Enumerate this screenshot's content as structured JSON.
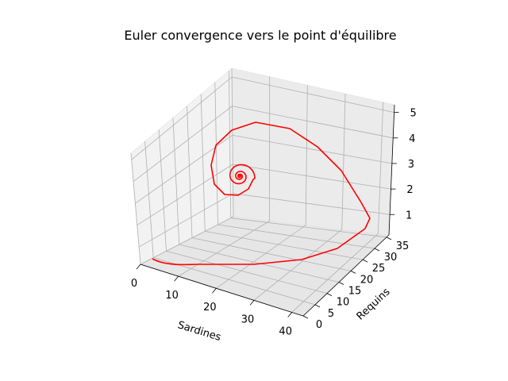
{
  "chart_data": {
    "type": "line3d",
    "title": "Euler convergence vers le point d'équilibre",
    "xlabel": "Sardines",
    "ylabel": "Requins",
    "zlabel": "",
    "xticks": [
      "0",
      "10",
      "20",
      "30",
      "40"
    ],
    "yticks": [
      "0",
      "5",
      "10",
      "15",
      "20",
      "25",
      "30",
      "35"
    ],
    "zticks": [
      "1",
      "2",
      "3",
      "4",
      "5"
    ],
    "xlim": [
      0,
      43
    ],
    "ylim": [
      0,
      36
    ],
    "zlim": [
      0.2,
      5.3
    ],
    "grid": true,
    "series": [
      {
        "name": "",
        "color": "#ff0000",
        "description": "trajectoire en spirale convergeant vers le point d'équilibre"
      }
    ]
  }
}
